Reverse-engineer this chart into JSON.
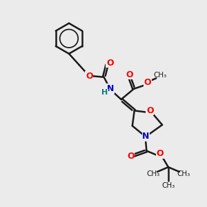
{
  "background_color": "#ebebeb",
  "atom_colors": {
    "O": "#ff0000",
    "N": "#0000cc",
    "H": "#008080",
    "C": "#1a1a1a"
  },
  "bond_color": "#1a1a1a",
  "bond_width": 1.8,
  "figsize": [
    3.0,
    3.0
  ],
  "dpi": 100,
  "xlim": [
    0,
    10
  ],
  "ylim": [
    0,
    10
  ]
}
